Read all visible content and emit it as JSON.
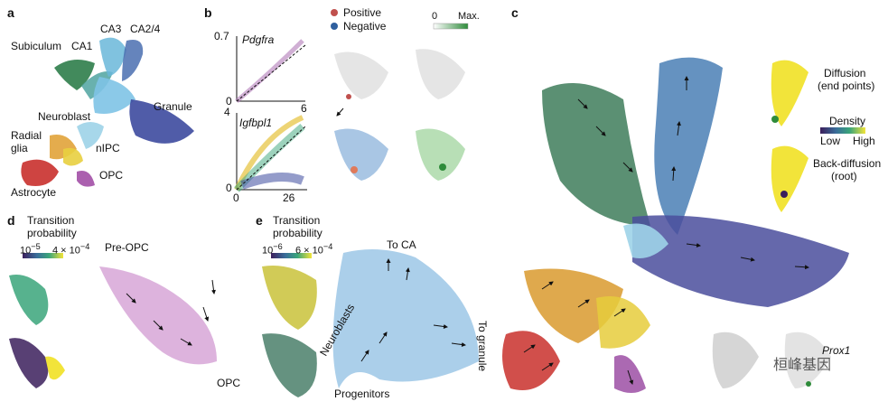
{
  "panels": {
    "a": "a",
    "b": "b",
    "c": "c",
    "d": "d",
    "e": "e"
  },
  "panel_a": {
    "labels": {
      "ca3": "CA3",
      "ca24": "CA2/4",
      "subiculum": "Subiculum",
      "ca1": "CA1",
      "granule": "Granule",
      "neuroblast": "Neuroblast",
      "radial_glia_1": "Radial",
      "radial_glia_2": "glia",
      "nipc": "nIPC",
      "opc": "OPC",
      "astrocyte": "Astrocyte"
    }
  },
  "panel_b": {
    "legend": {
      "positive": "Positive",
      "negative": "Negative",
      "scale_min": "0",
      "scale_max": "Max."
    },
    "plot_top": {
      "gene": "Pdgfra",
      "ymax": "0.7",
      "y0": "0",
      "xmax": "6"
    },
    "plot_bottom": {
      "gene": "Igfbpl1",
      "ymax": "4",
      "y0": "0",
      "x0": "0",
      "xmax": "26"
    },
    "colors": {
      "positive": "#c0504d",
      "negative": "#2f5f9e",
      "green": "#2e8b3a"
    }
  },
  "panel_c": {
    "diffusion_1": "Diffusion",
    "diffusion_2": "(end points)",
    "density": "Density",
    "low": "Low",
    "high": "High",
    "back_1": "Back-diffusion",
    "back_2": "(root)",
    "gene": "Prox1",
    "watermark": "桓峰基因"
  },
  "panel_d": {
    "title_1": "Transition",
    "title_2": "probability",
    "scale_min": "10",
    "scale_min_exp": "−5",
    "scale_max": "4 × 10",
    "scale_max_exp": "−4",
    "pre_opc": "Pre-OPC",
    "opc": "OPC"
  },
  "panel_e": {
    "title_1": "Transition",
    "title_2": "probability",
    "scale_min": "10",
    "scale_min_exp": "−6",
    "scale_max": "6 × 10",
    "scale_max_exp": "−4",
    "to_ca": "To CA",
    "neuroblasts": "Neuroblasts",
    "progenitors": "Progenitors",
    "to_granule": "To granule"
  }
}
